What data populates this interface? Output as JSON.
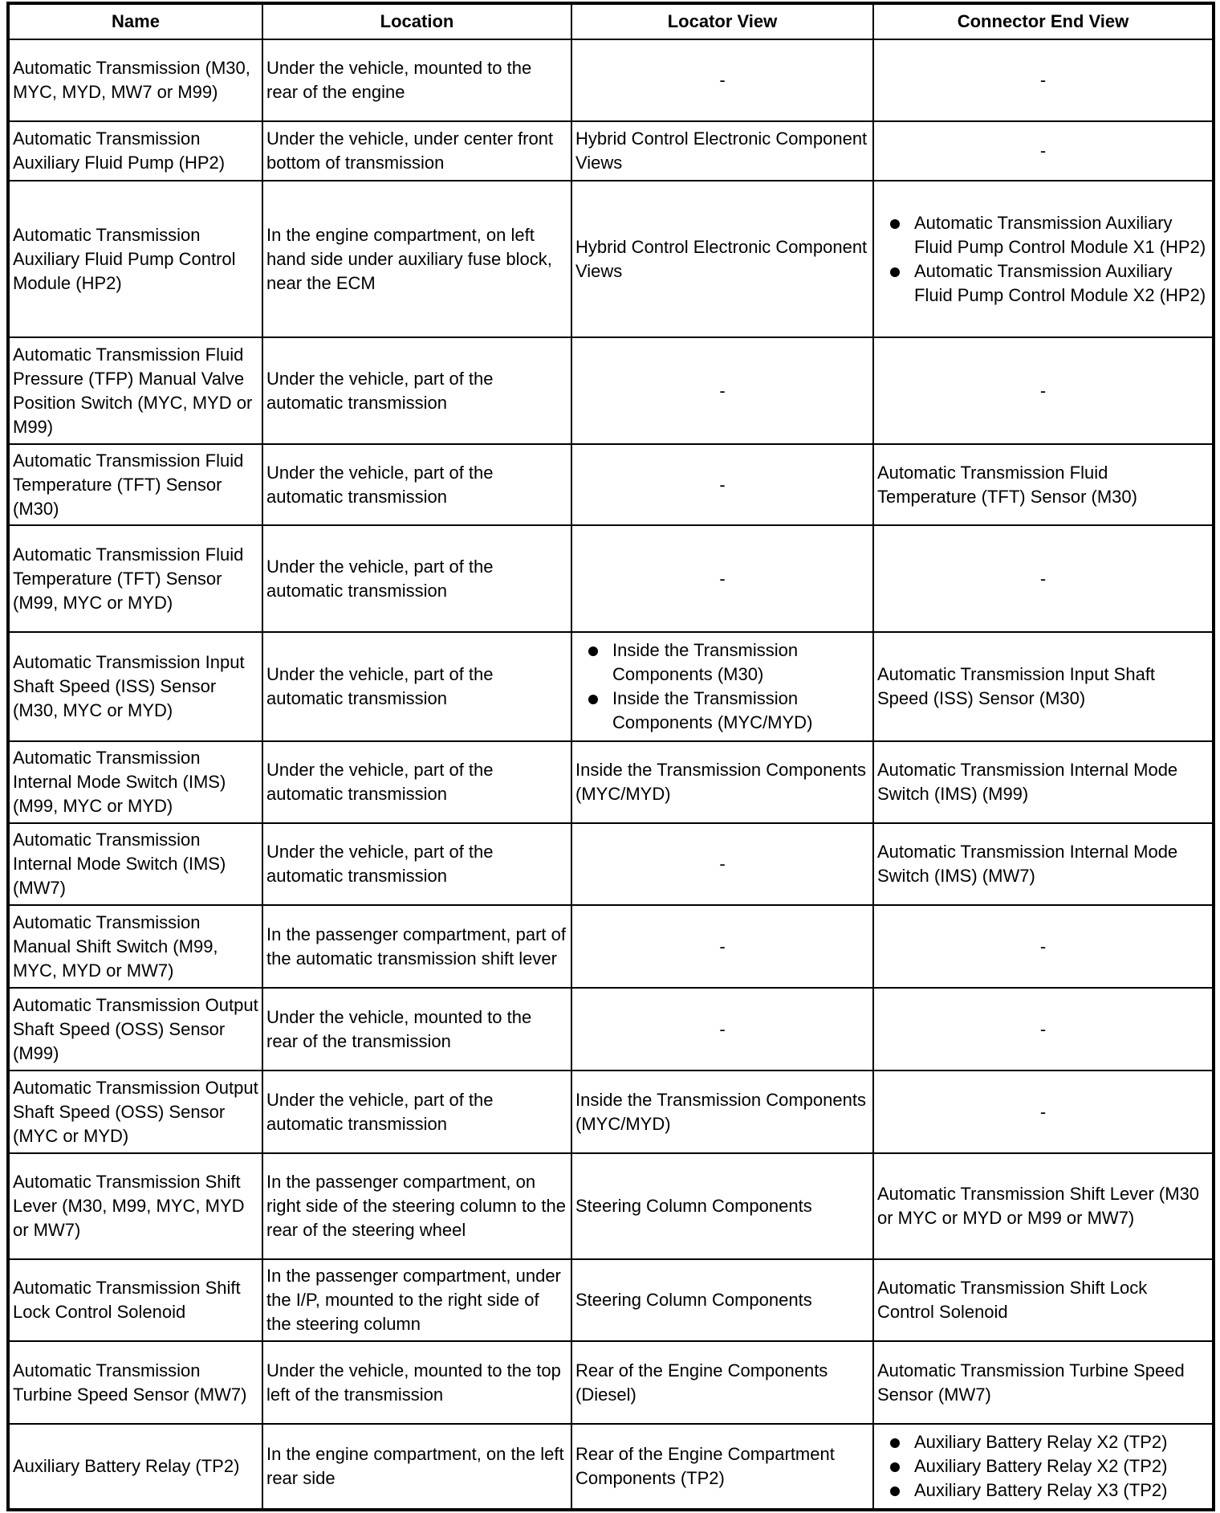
{
  "table": {
    "headers": [
      "Name",
      "Location",
      "Locator View",
      "Connector End View"
    ],
    "rows": [
      [
        "Automatic Transmission (M30, MYC, MYD, MW7 or M99)",
        "Under the vehicle, mounted to the rear of the engine",
        "-",
        "-"
      ],
      [
        "Automatic Transmission Auxiliary Fluid Pump (HP2)",
        "Under the vehicle, under center front bottom of transmission",
        "Hybrid Control Electronic Component Views",
        "-"
      ],
      [
        "Automatic Transmission Auxiliary Fluid Pump Control Module (HP2)",
        "In the engine compartment, on left hand side under auxiliary fuse block, near the ECM",
        "Hybrid Control Electronic Component Views",
        [
          "Automatic Transmission Auxiliary Fluid Pump Control Module X1 (HP2)",
          "Automatic Transmission Auxiliary Fluid Pump Control Module X2 (HP2)"
        ]
      ],
      [
        "Automatic Transmission Fluid Pressure (TFP) Manual Valve Position Switch (MYC, MYD or M99)",
        "Under the vehicle, part of the automatic transmission",
        "-",
        "-"
      ],
      [
        "Automatic Transmission Fluid Temperature (TFT) Sensor (M30)",
        "Under the vehicle, part of the automatic transmission",
        "-",
        "Automatic Transmission Fluid Temperature (TFT) Sensor (M30)"
      ],
      [
        "Automatic Transmission Fluid Temperature (TFT) Sensor (M99, MYC or MYD)",
        "Under the vehicle, part of the automatic transmission",
        "-",
        "-"
      ],
      [
        "Automatic Transmission Input Shaft Speed (ISS) Sensor (M30, MYC or MYD)",
        "Under the vehicle, part of the automatic transmission",
        [
          "Inside the Transmission Components (M30)",
          "Inside the Transmission Components (MYC/MYD)"
        ],
        "Automatic Transmission Input Shaft Speed (ISS) Sensor (M30)"
      ],
      [
        "Automatic Transmission Internal Mode Switch (IMS) (M99, MYC or MYD)",
        "Under the vehicle, part of the automatic transmission",
        "Inside the Transmission Components (MYC/MYD)",
        "Automatic Transmission Internal Mode Switch (IMS) (M99)"
      ],
      [
        "Automatic Transmission Internal Mode Switch (IMS) (MW7)",
        "Under the vehicle, part of the automatic transmission",
        "-",
        "Automatic Transmission Internal Mode Switch (IMS) (MW7)"
      ],
      [
        "Automatic Transmission Manual Shift Switch (M99, MYC, MYD or MW7)",
        "In the passenger compartment, part of the automatic transmission shift lever",
        "-",
        "-"
      ],
      [
        "Automatic Transmission Output Shaft Speed (OSS) Sensor (M99)",
        "Under the vehicle, mounted to the rear of the transmission",
        "-",
        "-"
      ],
      [
        "Automatic Transmission Output Shaft Speed (OSS) Sensor (MYC or MYD)",
        "Under the vehicle, part of the automatic transmission",
        "Inside the Transmission Components (MYC/MYD)",
        "-"
      ],
      [
        "Automatic Transmission Shift Lever (M30, M99, MYC, MYD or MW7)",
        "In the passenger compartment, on right side of the steering column to the rear of the steering wheel",
        "Steering Column Components",
        "Automatic Transmission Shift Lever (M30 or MYC or MYD or M99 or MW7)"
      ],
      [
        "Automatic Transmission Shift Lock Control Solenoid",
        "In the passenger compartment, under the I/P, mounted to the right side of the steering column",
        "Steering Column Components",
        "Automatic Transmission Shift Lock Control Solenoid"
      ],
      [
        "Automatic Transmission Turbine Speed Sensor (MW7)",
        "Under the vehicle, mounted to the top left of the transmission",
        "Rear of the Engine Components (Diesel)",
        "Automatic Transmission Turbine Speed Sensor (MW7)"
      ],
      [
        "Auxiliary Battery Relay (TP2)",
        "In the engine compartment, on the left rear side",
        "Rear of the Engine Compartment Components (TP2)",
        [
          "Auxiliary Battery Relay X2 (TP2)",
          "Auxiliary Battery Relay X2 (TP2)",
          "Auxiliary Battery Relay X3 (TP2)"
        ]
      ]
    ]
  }
}
